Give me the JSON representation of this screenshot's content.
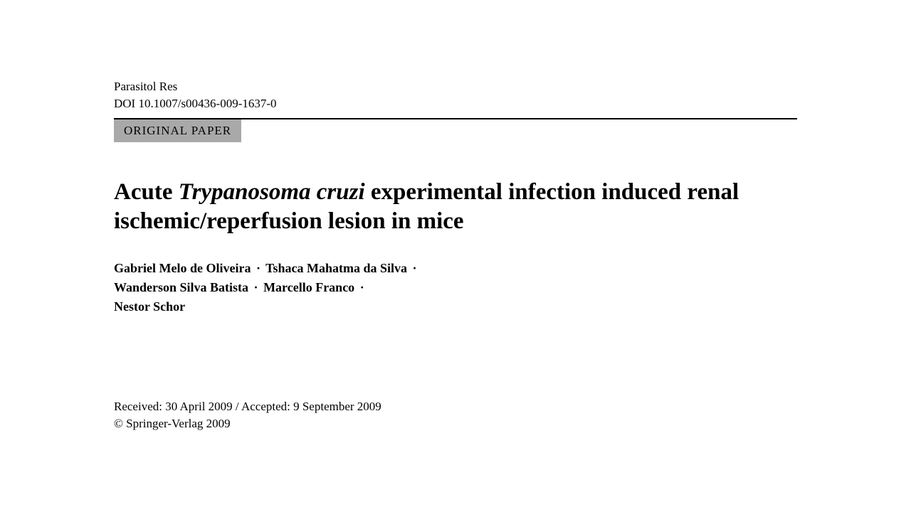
{
  "header": {
    "journal": "Parasitol Res",
    "doi": "DOI 10.1007/s00436-009-1637-0",
    "paper_type": "ORIGINAL PAPER"
  },
  "title": {
    "part1": "Acute ",
    "italic": "Trypanosoma cruzi",
    "part2": " experimental infection induced renal ischemic/reperfusion lesion in mice"
  },
  "authors": {
    "a1": "Gabriel Melo de Oliveira",
    "a2": "Tshaca Mahatma da Silva",
    "a3": "Wanderson Silva Batista",
    "a4": "Marcello Franco",
    "a5": "Nestor Schor",
    "separator": "·"
  },
  "dates": {
    "line": "Received: 30 April 2009 / Accepted: 9 September 2009",
    "copyright": "© Springer-Verlag 2009"
  },
  "colors": {
    "background": "#ffffff",
    "text": "#000000",
    "badge_bg": "#a9a9a9",
    "rule": "#000000"
  },
  "typography": {
    "journal_fontsize": 17,
    "badge_fontsize": 17,
    "title_fontsize": 33,
    "authors_fontsize": 18,
    "dates_fontsize": 17
  }
}
